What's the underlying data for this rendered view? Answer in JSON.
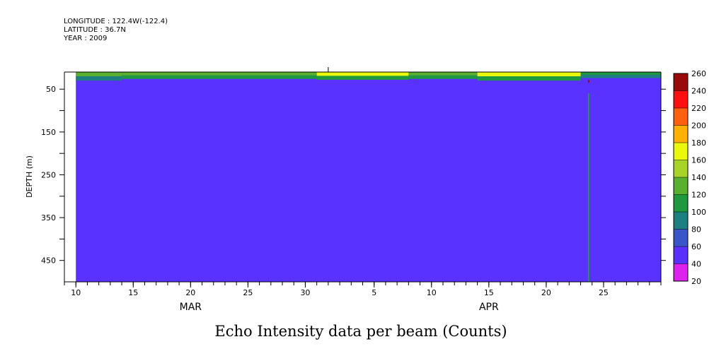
{
  "header": {
    "longitude": "LONGITUDE : 122.4W(-122.4)",
    "latitude": "LATITUDE : 36.7N",
    "year": "YEAR : 2009"
  },
  "chart_data": {
    "type": "heatmap",
    "title": "Echo Intensity data per beam (Counts)",
    "ylabel": "DEPTH (m)",
    "xlabel": "",
    "y_axis": {
      "range": [
        10,
        500
      ],
      "inverted": true,
      "ticks": [
        50,
        150,
        250,
        350,
        450
      ]
    },
    "x_axis": {
      "range_days": [
        "2009-03-09",
        "2009-04-30"
      ],
      "tick_labels": [
        {
          "date": "2009-03-10",
          "label": "10"
        },
        {
          "date": "2009-03-15",
          "label": "15"
        },
        {
          "date": "2009-03-20",
          "label": "20"
        },
        {
          "date": "2009-03-25",
          "label": "25"
        },
        {
          "date": "2009-03-30",
          "label": "30"
        },
        {
          "date": "2009-04-05",
          "label": "5"
        },
        {
          "date": "2009-04-10",
          "label": "10"
        },
        {
          "date": "2009-04-15",
          "label": "15"
        },
        {
          "date": "2009-04-20",
          "label": "20"
        },
        {
          "date": "2009-04-25",
          "label": "25"
        }
      ],
      "month_labels": [
        {
          "date": "2009-03-20",
          "label": "MAR"
        },
        {
          "date": "2009-04-15",
          "label": "APR"
        }
      ]
    },
    "data_start": "2009-03-10",
    "data_end": "2009-04-30",
    "colorbar": {
      "levels": [
        20,
        40,
        60,
        80,
        100,
        120,
        140,
        160,
        180,
        200,
        220,
        240,
        260
      ],
      "colors": [
        "#dd22ee",
        "#5a32ff",
        "#3a55c8",
        "#1e7f80",
        "#1e9940",
        "#58b02e",
        "#a8d42a",
        "#eaf80c",
        "#ffb000",
        "#ff6010",
        "#ff1010",
        "#9a0a0a"
      ]
    },
    "background_value_range": [
      40,
      60
    ],
    "surface_layer": {
      "depth_range_m": [
        10,
        30
      ],
      "segments": [
        {
          "start": "2009-03-10",
          "end": "2009-03-14",
          "bottom_depth_m": 30,
          "values": [
            130,
            90
          ]
        },
        {
          "start": "2009-03-14",
          "end": "2009-03-31",
          "bottom_depth_m": 26,
          "values": [
            130,
            100
          ]
        },
        {
          "start": "2009-03-31",
          "end": "2009-04-08",
          "bottom_depth_m": 28,
          "values": [
            165,
            110
          ]
        },
        {
          "start": "2009-04-08",
          "end": "2009-04-14",
          "bottom_depth_m": 26,
          "values": [
            130,
            100
          ]
        },
        {
          "start": "2009-04-14",
          "end": "2009-04-23",
          "bottom_depth_m": 30,
          "values": [
            165,
            110
          ]
        },
        {
          "start": "2009-04-23",
          "end": "2009-04-30",
          "bottom_depth_m": 24,
          "values": [
            100,
            90
          ]
        }
      ]
    },
    "anomaly": {
      "date": "2009-04-23.7",
      "depth_range_m": [
        60,
        500
      ],
      "value": 100,
      "top_value": 250
    }
  }
}
